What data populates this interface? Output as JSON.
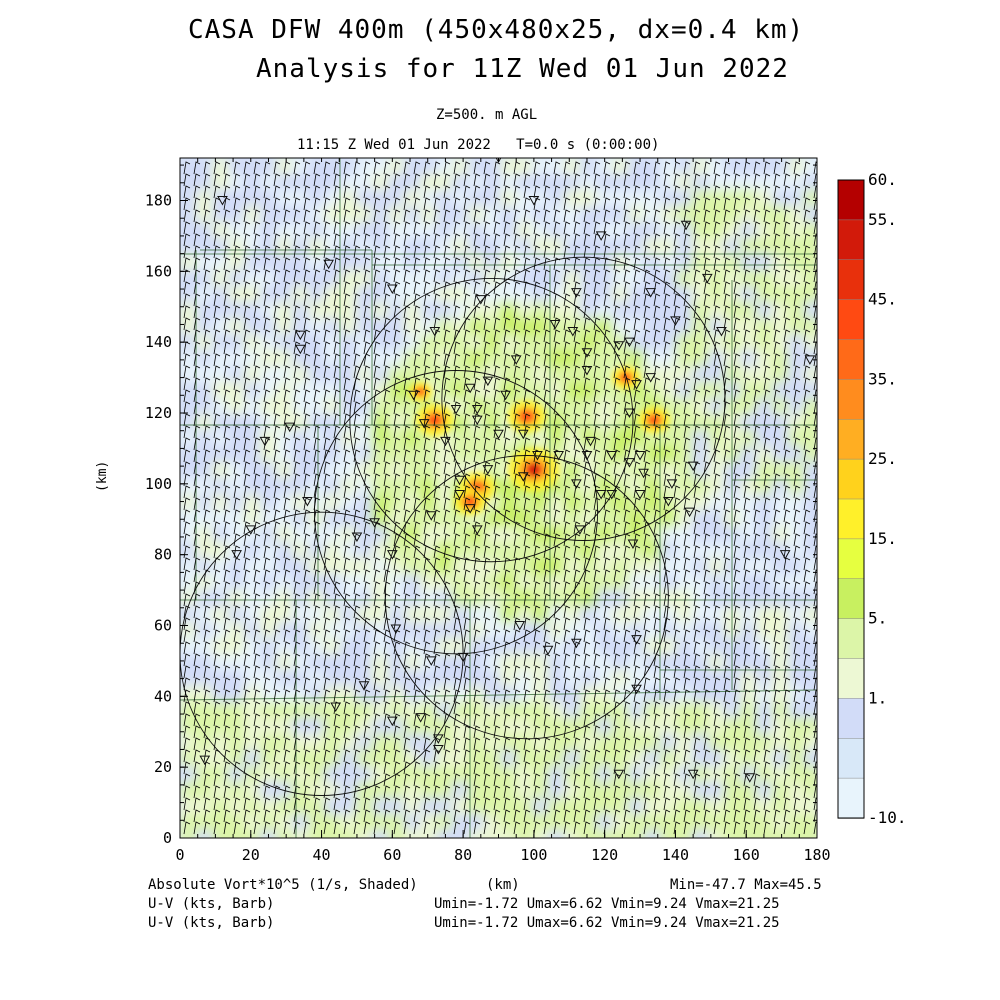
{
  "title_line1": "CASA DFW 400m (450x480x25, dx=0.4 km)",
  "title_line2": "Analysis for 11Z Wed 01 Jun 2022",
  "level_label": "Z=500. m AGL",
  "time_label": "11:15 Z Wed 01 Jun 2022   T=0.0 s (0:00:00)",
  "footer": {
    "shaded_label": "Absolute Vort*10^5 (1/s, Shaded)",
    "xunit": "(km)",
    "minmax": "Min=-47.7 Max=45.5",
    "barb1_label": "U-V (kts, Barb)",
    "barb1_stats": "Umin=-1.72 Umax=6.62 Vmin=9.24 Vmax=21.25",
    "barb2_label": "U-V (kts, Barb)",
    "barb2_stats": "Umin=-1.72 Umax=6.62 Vmin=9.24 Vmax=21.25"
  },
  "chart_data": {
    "type": "heatmap",
    "title": "CASA DFW 400m (450x480x25, dx=0.4 km)",
    "subtitle": "Analysis for 11Z Wed 01 Jun 2022",
    "xlabel": "(km)",
    "ylabel": "(km)",
    "xlim": [
      0,
      180
    ],
    "ylim": [
      0,
      192
    ],
    "x_ticks": [
      "0",
      "20",
      "40",
      "60",
      "80",
      "100",
      "120",
      "140",
      "160",
      "180"
    ],
    "y_ticks": [
      "0",
      "20",
      "40",
      "60",
      "80",
      "100",
      "120",
      "140",
      "160",
      "180"
    ],
    "colorbar_labels": [
      "60.",
      "55.",
      "45.",
      "35.",
      "25.",
      "15.",
      "5.",
      "1.",
      "-10."
    ],
    "colorbar_colors": [
      "#b40000",
      "#d21a0a",
      "#e8300c",
      "#ff4a12",
      "#ff6a18",
      "#ff8c1e",
      "#ffae22",
      "#ffd21c",
      "#fff02a",
      "#e6ff40",
      "#c8f060",
      "#dcf5a8",
      "#edf8d4",
      "#d2dcf8",
      "#d8e8f8",
      "#e8f4fc"
    ],
    "field_extremes": {
      "min": -47.7,
      "max": 45.5
    },
    "radar_rings_center_km": [
      [
        88,
        118
      ],
      [
        114,
        124
      ],
      [
        78,
        92
      ],
      [
        98,
        68
      ],
      [
        40,
        52
      ]
    ],
    "radar_ring_radius_km": 40,
    "vorticity_hotspots_km": [
      {
        "x": 100,
        "y": 104,
        "value": 40
      },
      {
        "x": 98,
        "y": 119,
        "value": 30
      },
      {
        "x": 72,
        "y": 118,
        "value": 30
      },
      {
        "x": 84,
        "y": 99,
        "value": 28
      },
      {
        "x": 134,
        "y": 118,
        "value": 25
      },
      {
        "x": 126,
        "y": 130,
        "value": 22
      },
      {
        "x": 82,
        "y": 95,
        "value": 25
      },
      {
        "x": 68,
        "y": 126,
        "value": 18
      }
    ]
  }
}
